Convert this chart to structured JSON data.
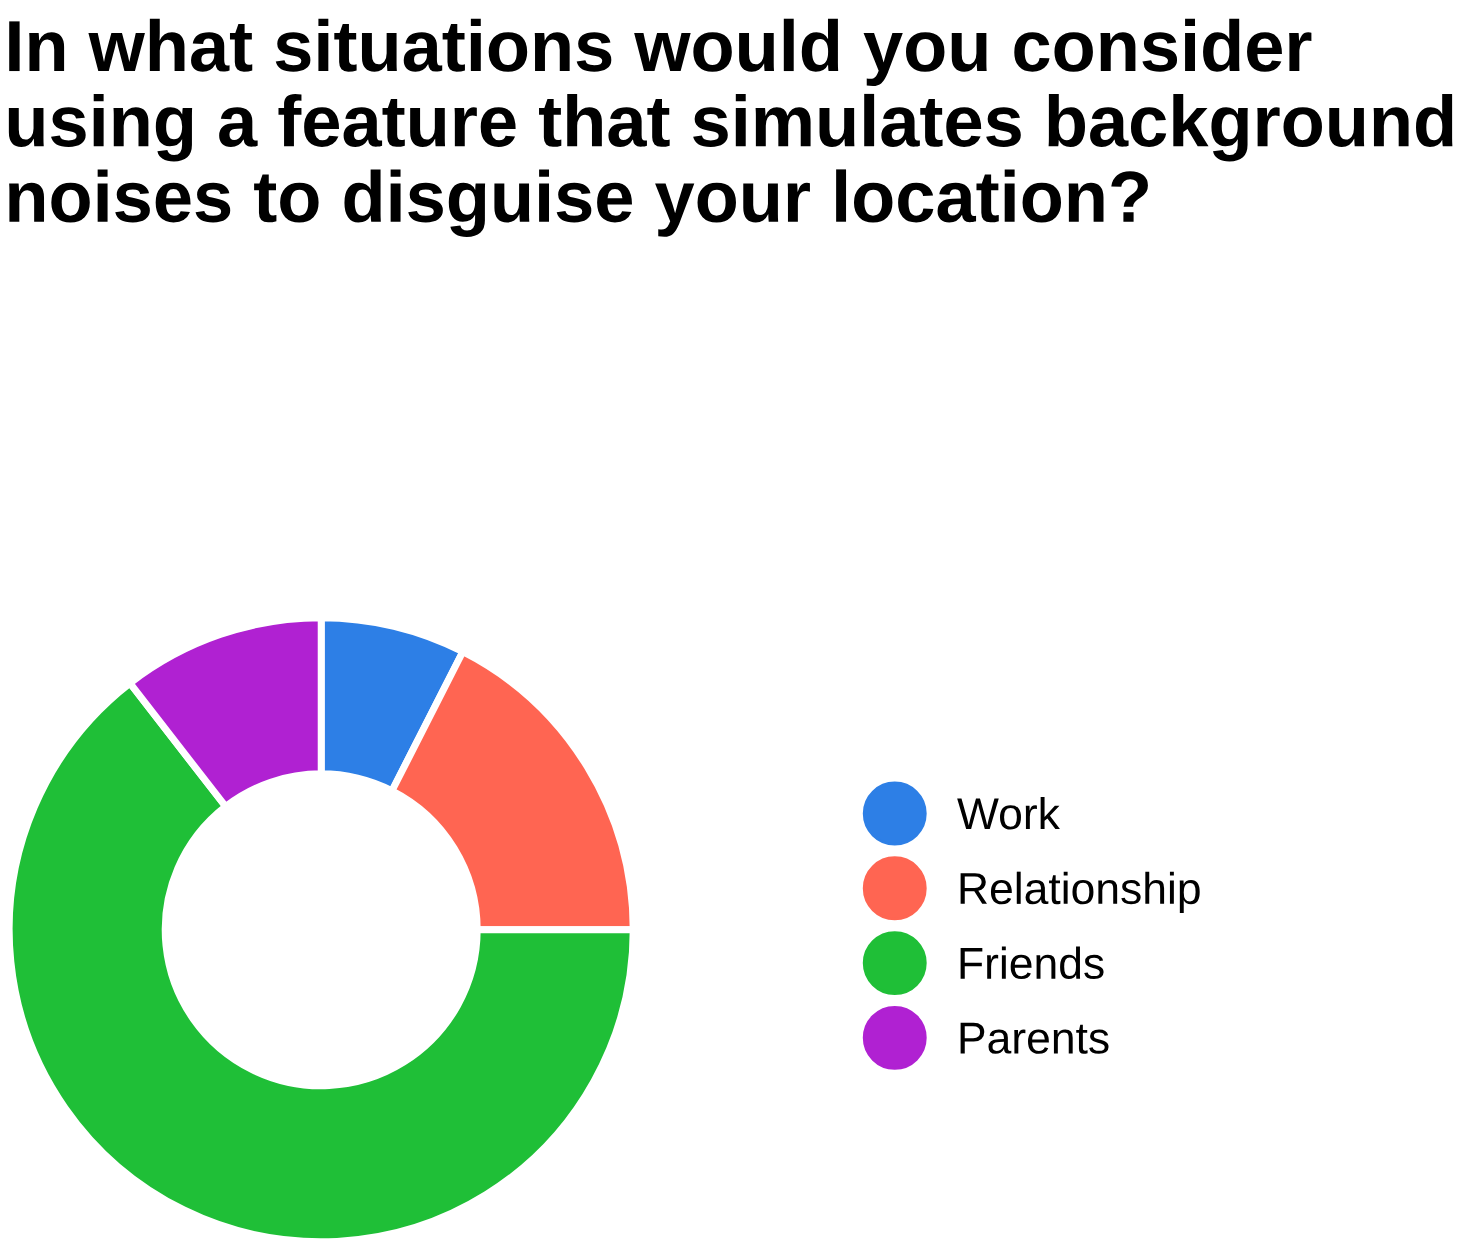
{
  "chart_data": {
    "type": "donut",
    "title": "In what situations would you consider using a feature that simulates background noises to disguise your location?",
    "categories": [
      "Work",
      "Relationship",
      "Friends",
      "Parents"
    ],
    "values": [
      7.5,
      17.5,
      64.5,
      10.5
    ],
    "colors": [
      "#2d7fe6",
      "#ff6552",
      "#1fbf37",
      "#b021d2"
    ],
    "legend": "right"
  }
}
